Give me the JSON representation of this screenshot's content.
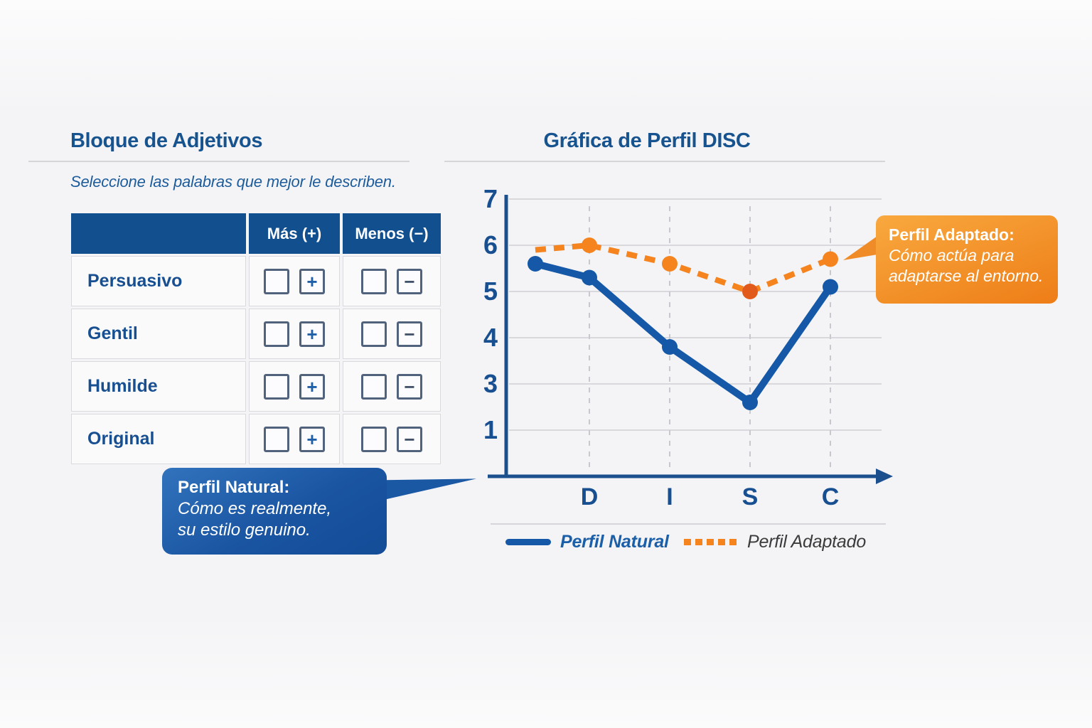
{
  "colors": {
    "brand_blue": "#17538f",
    "table_header_blue": "#114f8f",
    "line_blue": "#1458a7",
    "orange": "#f5841f",
    "orange_highlight": "#e2591c",
    "gridline": "#d9d9dd",
    "axis_blue": "#1b4f8e"
  },
  "left_panel": {
    "title": "Bloque de Adjetivos",
    "subtitle": "Seleccione las palabras que mejor le describen.",
    "table": {
      "columns": [
        "",
        "Más (+)",
        "Menos (−)"
      ],
      "plus": "+",
      "minus": "−",
      "rows": [
        {
          "label": "Persuasivo"
        },
        {
          "label": "Gentil"
        },
        {
          "label": "Humilde"
        },
        {
          "label": "Original"
        }
      ]
    },
    "callout": {
      "title": "Perfil Natural:",
      "lines": [
        "Cómo es realmente,",
        "su estilo genuino."
      ]
    }
  },
  "chart_panel": {
    "title": "Gráfica de Perfil DISC",
    "callout": {
      "title": "Perfil Adaptado:",
      "lines": [
        "Cómo actúa para",
        "adaptarse al entorno."
      ]
    }
  },
  "chart_data": {
    "type": "line",
    "title": "Gráfica de Perfil DISC",
    "categories": [
      "",
      "D",
      "I",
      "S",
      "C"
    ],
    "series": [
      {
        "name": "Perfil Natural",
        "style": "solid",
        "color": "#1458a7",
        "values": [
          5.6,
          5.3,
          3.8,
          2.6,
          5.1
        ]
      },
      {
        "name": "Perfil Adaptado",
        "style": "dashed",
        "color": "#f5841f",
        "values": [
          5.9,
          6.0,
          5.6,
          5.0,
          5.7
        ],
        "highlight_point": {
          "category": "S",
          "color": "#e2591c"
        }
      }
    ],
    "y_tick_labels": [
      "7",
      "6",
      "5",
      "4",
      "3",
      "1"
    ],
    "x_tick_labels": [
      "D",
      "I",
      "S",
      "C"
    ],
    "ylim": [
      0,
      7
    ],
    "grid": true,
    "legend_position": "bottom"
  }
}
